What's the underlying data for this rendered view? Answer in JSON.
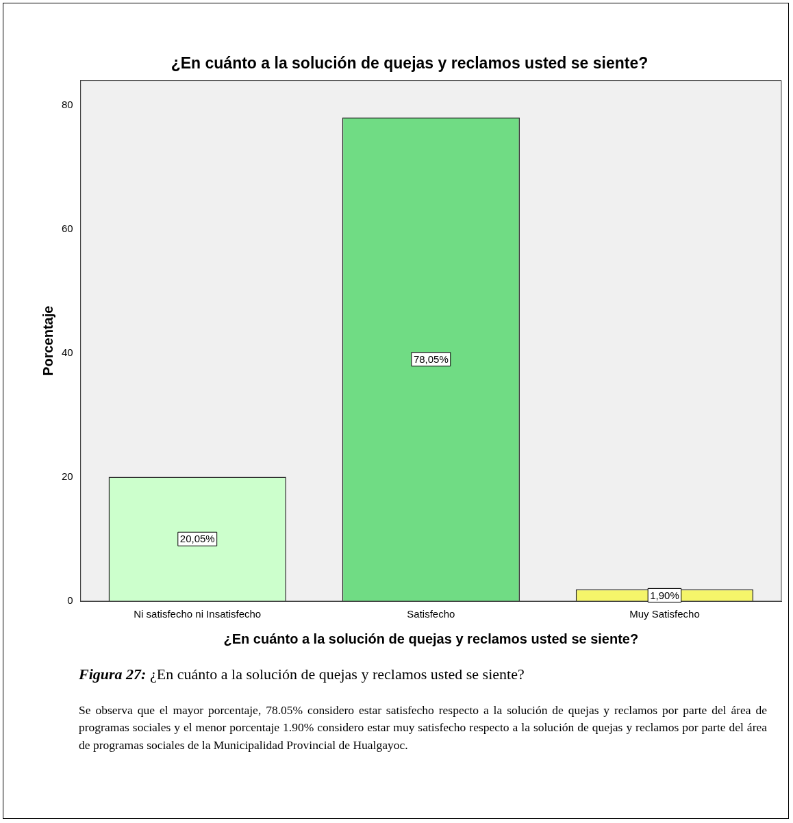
{
  "chart_data": {
    "type": "bar",
    "title": "¿En cuánto a la solución de quejas y reclamos usted se siente?",
    "xlabel": "¿En cuánto a la solución de quejas y reclamos usted se siente?",
    "ylabel": "Porcentaje",
    "categories": [
      "Ni satisfecho ni Insatisfecho",
      "Satisfecho",
      "Muy Satisfecho"
    ],
    "values": [
      20.05,
      78.05,
      1.9
    ],
    "colors": [
      "#ccffcc",
      "#70dc84",
      "#f5f56a"
    ],
    "value_labels": [
      "20,05%",
      "78,05%",
      "1,90%"
    ],
    "ylim": [
      0,
      84
    ],
    "yticks": [
      0,
      20,
      40,
      60,
      80
    ],
    "grid": false,
    "legend": false,
    "annotations": [
      "Figura 27: ¿En cuánto a la solución de quejas y reclamos usted se siente?",
      "Se observa que el mayor porcentaje, 78.05% considero estar satisfecho respecto a la solución de quejas y reclamos por parte del área de programas sociales y el menor porcentaje 1.90% considero estar muy satisfecho respecto a la solución de quejas y reclamos por parte del área de programas sociales de la Municipalidad Provincial de Hualgayoc."
    ]
  }
}
